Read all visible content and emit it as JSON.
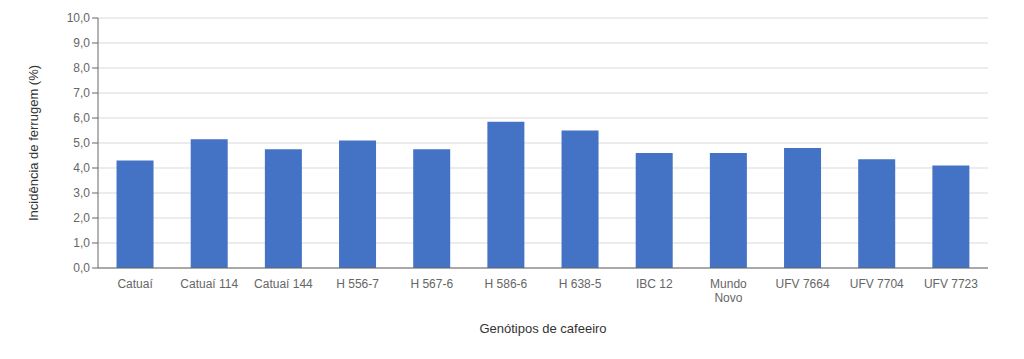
{
  "chart_data": {
    "type": "bar",
    "categories": [
      "Catuaí",
      "Catuaí 114",
      "Catuaí 144",
      "H 556-7",
      "H 567-6",
      "H 586-6",
      "H 638-5",
      "IBC 12",
      "Mundo\nNovo",
      "UFV 7664",
      "UFV 7704",
      "UFV 7723"
    ],
    "values": [
      4.3,
      5.15,
      4.75,
      5.1,
      4.75,
      5.85,
      5.5,
      4.6,
      4.6,
      4.8,
      4.35,
      4.1
    ],
    "color": "#4472C4",
    "xlabel": "Genótipos de cafeeiro",
    "ylabel": "Incidência de ferrugem (%)",
    "ylim": [
      0,
      10.0
    ],
    "yticks": [
      {
        "value": 0,
        "label": "0,0"
      },
      {
        "value": 1,
        "label": "1,0"
      },
      {
        "value": 2,
        "label": "2,0"
      },
      {
        "value": 3,
        "label": "3,0"
      },
      {
        "value": 4,
        "label": "4,0"
      },
      {
        "value": 5,
        "label": "5,0"
      },
      {
        "value": 6,
        "label": "6,0"
      },
      {
        "value": 7,
        "label": "7,0"
      },
      {
        "value": 8,
        "label": "8,0"
      },
      {
        "value": 9,
        "label": "9,0"
      },
      {
        "value": 10,
        "label": "10,0"
      }
    ],
    "grid": true
  }
}
